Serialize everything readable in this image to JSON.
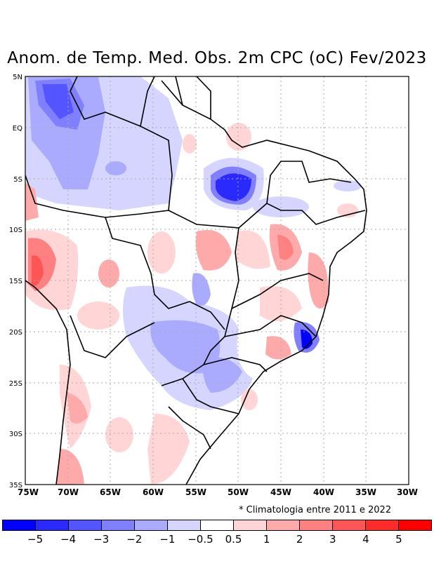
{
  "title": "Anom. de Temp. Med. Obs. 2m CPC (oC) Fev/2023",
  "note": "* Climatologia entre 2011 e 2022",
  "lat_labels": [
    "5N",
    "EQ",
    "5S",
    "10S",
    "15S",
    "20S",
    "25S",
    "30S",
    "35S"
  ],
  "lon_labels": [
    "75W",
    "70W",
    "65W",
    "60W",
    "55W",
    "50W",
    "45W",
    "40W",
    "35W",
    "30W"
  ],
  "colorbar": {
    "colors": [
      "#0000ff",
      "#2a2aff",
      "#5555ff",
      "#8080ff",
      "#aaaaff",
      "#d5d5ff",
      "#ffffff",
      "#ffd5d5",
      "#ffaaaa",
      "#ff8080",
      "#ff5555",
      "#ff2a2a",
      "#ff0000"
    ],
    "labels": [
      "−5",
      "−4",
      "−3",
      "−2",
      "−1",
      "−0.5",
      "0.5",
      "1",
      "2",
      "3",
      "4",
      "5"
    ]
  }
}
